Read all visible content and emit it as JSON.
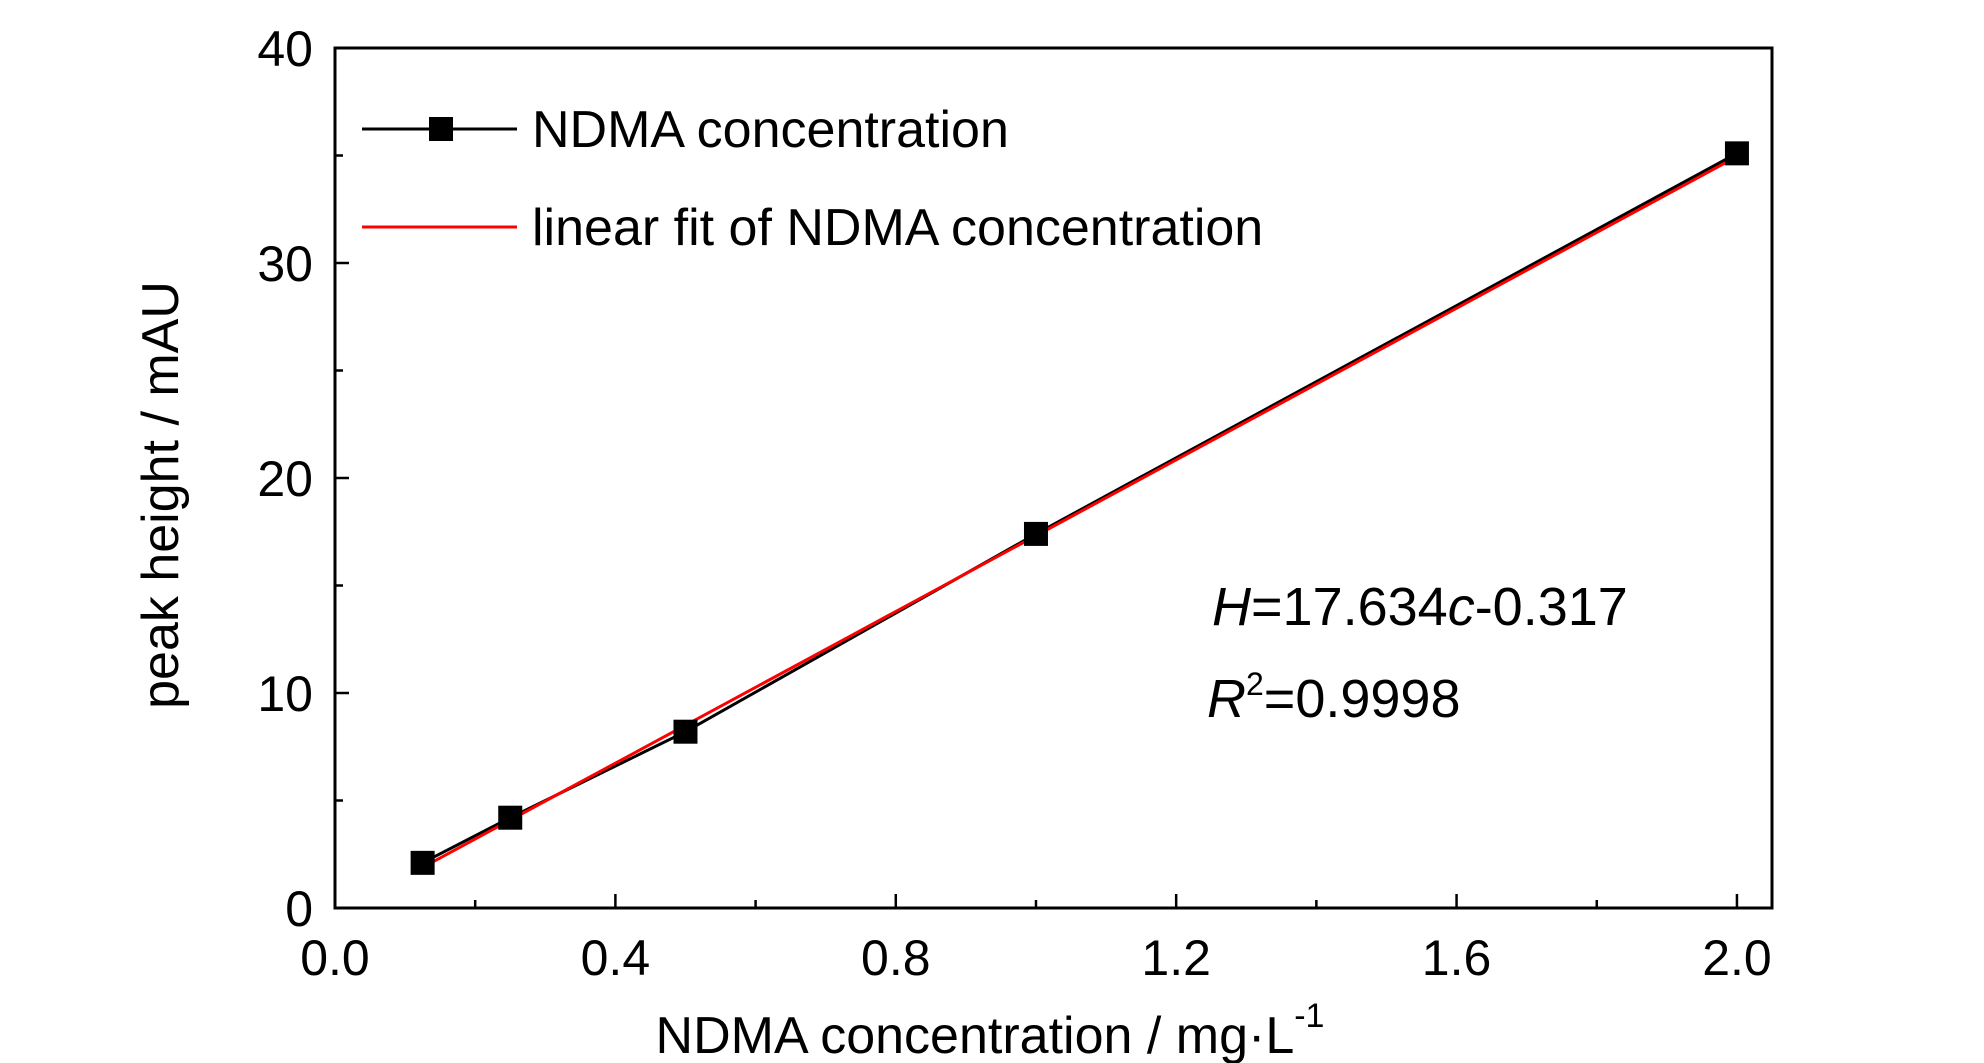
{
  "chart_data": {
    "type": "scatter",
    "xlabel_main": "NDMA concentration / mg·L",
    "xlabel_sup": "-1",
    "ylabel": "peak height / mAU",
    "xlim": [
      0.0,
      2.05
    ],
    "ylim": [
      0,
      40
    ],
    "xticks": [
      "0.0",
      "0.4",
      "0.8",
      "1.2",
      "1.6",
      "2.0"
    ],
    "yticks": [
      "0",
      "10",
      "20",
      "30",
      "40"
    ],
    "series": [
      {
        "name": "NDMA concentration",
        "color": "#000000",
        "marker": "square",
        "x": [
          0.125,
          0.25,
          0.5,
          1.0,
          2.0
        ],
        "y": [
          2.1,
          4.2,
          8.2,
          17.4,
          35.1
        ]
      },
      {
        "name": "linear fit of NDMA concentration",
        "color": "#ff0000",
        "marker": "none",
        "x": [
          0.125,
          2.0
        ],
        "y": [
          1.887,
          34.951
        ]
      }
    ],
    "legend_position": "top-left",
    "grid": false,
    "annotation": {
      "eq_H": "H",
      "eq_rest": "=17.634",
      "eq_c": "c",
      "eq_tail": "-0.317",
      "r_R": "R",
      "r_sup": "2",
      "r_val": "=0.9998"
    }
  }
}
